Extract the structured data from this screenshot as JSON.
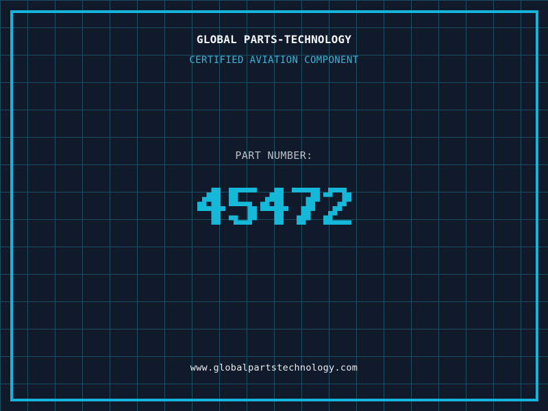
{
  "header": {
    "company_name": "GLOBAL PARTS-TECHNOLOGY",
    "tagline": "CERTIFIED AVIATION COMPONENT"
  },
  "part": {
    "label": "PART NUMBER:",
    "number": "45472"
  },
  "footer": {
    "website": "www.globalpartstechnology.com"
  },
  "colors": {
    "bg": "#101a2a",
    "grid": "#1d4f63",
    "frame": "#14b4dc",
    "title": "#f2f5f8",
    "subtitle": "#38b6d8",
    "label": "#b9c0ca",
    "digits": "#15b8d8",
    "footer": "#e9edf2"
  }
}
